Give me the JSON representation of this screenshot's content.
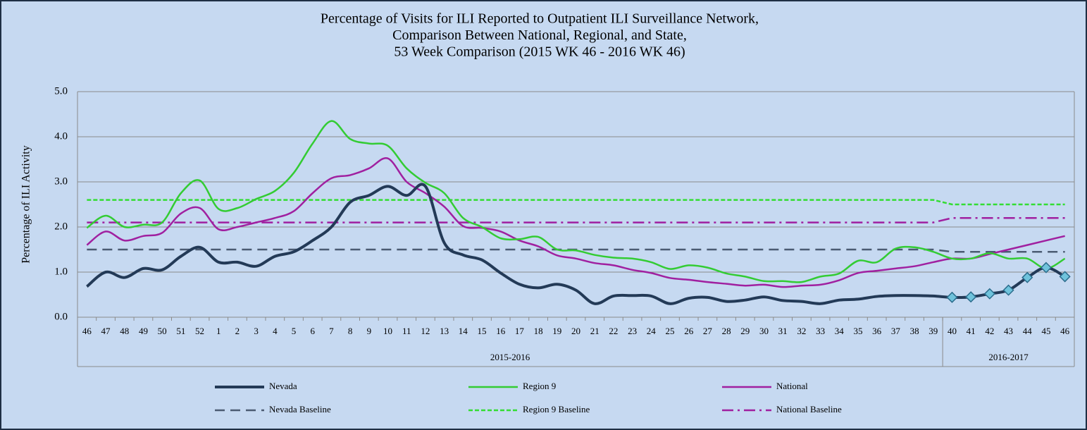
{
  "chart_data": {
    "type": "line",
    "title": [
      "Percentage of Visits for ILI Reported to Outpatient ILI Surveillance Network,",
      "Comparison Between National, Regional, and State,",
      "53 Week Comparison (2015 WK 46 - 2016 WK 46)"
    ],
    "y_label": "Percentage of ILI Activity",
    "categories": [
      "46",
      "47",
      "48",
      "49",
      "50",
      "51",
      "52",
      "1",
      "2",
      "3",
      "4",
      "5",
      "6",
      "7",
      "8",
      "9",
      "10",
      "11",
      "12",
      "13",
      "14",
      "15",
      "16",
      "17",
      "18",
      "19",
      "20",
      "21",
      "22",
      "23",
      "24",
      "25",
      "26",
      "27",
      "28",
      "29",
      "30",
      "31",
      "32",
      "33",
      "34",
      "35",
      "36",
      "37",
      "38",
      "39",
      "40",
      "41",
      "42",
      "43",
      "44",
      "45",
      "46"
    ],
    "groups": [
      "2015-2016",
      "2015-2016",
      "2015-2016",
      "2015-2016",
      "2015-2016",
      "2015-2016",
      "2015-2016",
      "2015-2016",
      "2015-2016",
      "2015-2016",
      "2015-2016",
      "2015-2016",
      "2015-2016",
      "2015-2016",
      "2015-2016",
      "2015-2016",
      "2015-2016",
      "2015-2016",
      "2015-2016",
      "2015-2016",
      "2015-2016",
      "2015-2016",
      "2015-2016",
      "2015-2016",
      "2015-2016",
      "2015-2016",
      "2015-2016",
      "2015-2016",
      "2015-2016",
      "2015-2016",
      "2015-2016",
      "2015-2016",
      "2015-2016",
      "2015-2016",
      "2015-2016",
      "2015-2016",
      "2015-2016",
      "2015-2016",
      "2015-2016",
      "2015-2016",
      "2015-2016",
      "2015-2016",
      "2015-2016",
      "2015-2016",
      "2015-2016",
      "2015-2016",
      "2016-2017",
      "2016-2017",
      "2016-2017",
      "2016-2017",
      "2016-2017",
      "2016-2017",
      "2016-2017"
    ],
    "ylim": [
      0,
      5
    ],
    "yticks": [
      {
        "value": 0,
        "label": "0.0"
      },
      {
        "value": 1,
        "label": "1.0"
      },
      {
        "value": 2,
        "label": "2.0"
      },
      {
        "value": 3,
        "label": "3.0"
      },
      {
        "value": 4,
        "label": "4.0"
      },
      {
        "value": 5,
        "label": "5.0"
      }
    ],
    "grid": true,
    "series": [
      {
        "name": "Nevada",
        "color": "#233a57",
        "width": 4,
        "style": "solid",
        "smooth": true,
        "values": [
          0.68,
          1.0,
          0.88,
          1.08,
          1.05,
          1.35,
          1.55,
          1.22,
          1.22,
          1.13,
          1.35,
          1.45,
          1.7,
          2.0,
          2.55,
          2.7,
          2.9,
          2.7,
          2.9,
          1.65,
          1.38,
          1.27,
          0.98,
          0.73,
          0.65,
          0.73,
          0.6,
          0.3,
          0.47,
          0.48,
          0.47,
          0.3,
          0.42,
          0.44,
          0.35,
          0.38,
          0.45,
          0.37,
          0.35,
          0.3,
          0.38,
          0.4,
          0.46,
          0.48,
          0.48,
          0.47,
          0.44,
          0.45,
          0.52,
          0.6,
          0.88,
          1.1,
          0.9
        ],
        "markers": [
          null,
          null,
          null,
          null,
          null,
          null,
          null,
          null,
          null,
          null,
          null,
          null,
          null,
          null,
          null,
          null,
          null,
          null,
          null,
          null,
          null,
          null,
          null,
          null,
          null,
          null,
          null,
          null,
          null,
          null,
          null,
          null,
          null,
          null,
          null,
          null,
          null,
          null,
          null,
          null,
          null,
          null,
          null,
          null,
          null,
          null,
          "diamond",
          "diamond",
          "diamond",
          "diamond",
          "diamond",
          "diamond",
          "diamond"
        ]
      },
      {
        "name": "Region 9",
        "color": "#33cc33",
        "width": 2.5,
        "style": "solid",
        "smooth": true,
        "values": [
          1.98,
          2.25,
          2.0,
          2.05,
          2.1,
          2.75,
          3.03,
          2.4,
          2.42,
          2.62,
          2.8,
          3.2,
          3.85,
          4.35,
          3.95,
          3.85,
          3.8,
          3.3,
          2.98,
          2.75,
          2.2,
          2.0,
          1.75,
          1.73,
          1.78,
          1.5,
          1.48,
          1.38,
          1.32,
          1.3,
          1.22,
          1.07,
          1.15,
          1.1,
          0.97,
          0.9,
          0.8,
          0.8,
          0.78,
          0.9,
          0.97,
          1.25,
          1.22,
          1.52,
          1.55,
          1.45,
          1.3,
          1.3,
          1.42,
          1.3,
          1.3,
          1.08,
          1.3
        ]
      },
      {
        "name": "National",
        "color": "#a020a0",
        "width": 2.5,
        "style": "solid",
        "smooth": true,
        "values": [
          1.6,
          1.9,
          1.7,
          1.8,
          1.87,
          2.3,
          2.42,
          1.95,
          2.0,
          2.1,
          2.2,
          2.35,
          2.75,
          3.08,
          3.15,
          3.3,
          3.52,
          3.0,
          2.75,
          2.45,
          2.02,
          1.98,
          1.9,
          1.7,
          1.57,
          1.37,
          1.3,
          1.2,
          1.15,
          1.05,
          0.98,
          0.87,
          0.83,
          0.78,
          0.74,
          0.7,
          0.72,
          0.67,
          0.7,
          0.72,
          0.82,
          0.98,
          1.03,
          1.08,
          1.13,
          1.22,
          1.3,
          1.3,
          1.4,
          1.5,
          1.6,
          1.7,
          1.8
        ]
      },
      {
        "name": "Nevada Baseline",
        "color": "#4b5b72",
        "width": 2.5,
        "style": "dashed",
        "smooth": false,
        "values": [
          1.5,
          1.5,
          1.5,
          1.5,
          1.5,
          1.5,
          1.5,
          1.5,
          1.5,
          1.5,
          1.5,
          1.5,
          1.5,
          1.5,
          1.5,
          1.5,
          1.5,
          1.5,
          1.5,
          1.5,
          1.5,
          1.5,
          1.5,
          1.5,
          1.5,
          1.5,
          1.5,
          1.5,
          1.5,
          1.5,
          1.5,
          1.5,
          1.5,
          1.5,
          1.5,
          1.5,
          1.5,
          1.5,
          1.5,
          1.5,
          1.5,
          1.5,
          1.5,
          1.5,
          1.5,
          1.5,
          1.45,
          1.45,
          1.45,
          1.45,
          1.45,
          1.45,
          1.45
        ]
      },
      {
        "name": "Region 9 Baseline",
        "color": "#33dd33",
        "width": 2.5,
        "style": "dotted",
        "smooth": false,
        "values": [
          2.6,
          2.6,
          2.6,
          2.6,
          2.6,
          2.6,
          2.6,
          2.6,
          2.6,
          2.6,
          2.6,
          2.6,
          2.6,
          2.6,
          2.6,
          2.6,
          2.6,
          2.6,
          2.6,
          2.6,
          2.6,
          2.6,
          2.6,
          2.6,
          2.6,
          2.6,
          2.6,
          2.6,
          2.6,
          2.6,
          2.6,
          2.6,
          2.6,
          2.6,
          2.6,
          2.6,
          2.6,
          2.6,
          2.6,
          2.6,
          2.6,
          2.6,
          2.6,
          2.6,
          2.6,
          2.6,
          2.5,
          2.5,
          2.5,
          2.5,
          2.5,
          2.5,
          2.5
        ]
      },
      {
        "name": "National Baseline",
        "color": "#a020a0",
        "width": 2.5,
        "style": "dashdot",
        "smooth": false,
        "values": [
          2.1,
          2.1,
          2.1,
          2.1,
          2.1,
          2.1,
          2.1,
          2.1,
          2.1,
          2.1,
          2.1,
          2.1,
          2.1,
          2.1,
          2.1,
          2.1,
          2.1,
          2.1,
          2.1,
          2.1,
          2.1,
          2.1,
          2.1,
          2.1,
          2.1,
          2.1,
          2.1,
          2.1,
          2.1,
          2.1,
          2.1,
          2.1,
          2.1,
          2.1,
          2.1,
          2.1,
          2.1,
          2.1,
          2.1,
          2.1,
          2.1,
          2.1,
          2.1,
          2.1,
          2.1,
          2.1,
          2.2,
          2.2,
          2.2,
          2.2,
          2.2,
          2.2,
          2.2
        ]
      }
    ]
  }
}
